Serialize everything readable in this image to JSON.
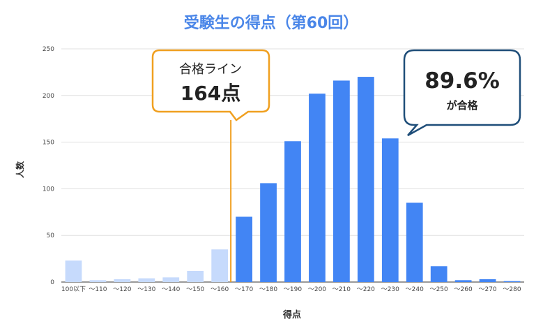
{
  "chart_data": {
    "type": "bar",
    "title": "受験生の得点（第60回）",
    "xlabel": "得点",
    "ylabel": "人数",
    "ylim": [
      0,
      250
    ],
    "yticks": [
      0,
      50,
      100,
      150,
      200,
      250
    ],
    "grid": true,
    "categories": [
      "100以下",
      "～110",
      "～120",
      "～130",
      "～140",
      "～150",
      "～160",
      "～170",
      "～180",
      "～190",
      "～200",
      "～210",
      "～220",
      "～230",
      "～240",
      "～250",
      "～260",
      "～270",
      "～280"
    ],
    "values": [
      23,
      2,
      3,
      4,
      5,
      12,
      35,
      70,
      106,
      151,
      202,
      216,
      220,
      154,
      85,
      17,
      2,
      3,
      1
    ],
    "passed": [
      false,
      false,
      false,
      false,
      false,
      false,
      false,
      true,
      true,
      true,
      true,
      true,
      true,
      true,
      true,
      true,
      true,
      true,
      true
    ],
    "colors": {
      "fail": "#c6dafc",
      "pass": "#4285f4",
      "title": "#4a86e8",
      "passline": "#f0a020",
      "callout_pass": "#1f4e79"
    },
    "annotations": {
      "passline": {
        "label": "合格ライン",
        "value_text": "164点",
        "score": 164
      },
      "rate": {
        "value_text": "89.6%",
        "label": "が合格"
      }
    }
  }
}
